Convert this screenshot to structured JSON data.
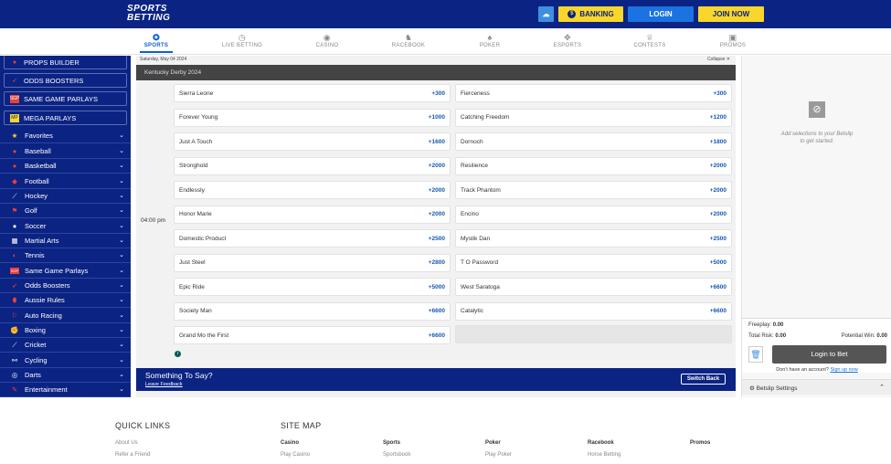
{
  "header": {
    "logo_line1": "SPORTS",
    "logo_line2": "BETTING",
    "banking_label": "BANKING",
    "login_label": "LOGIN",
    "join_label": "JOIN NOW",
    "colors": {
      "header_bg": "#0b2382",
      "yellow": "#f9d62a",
      "blue": "#1a73e0"
    }
  },
  "nav": [
    {
      "label": "SPORTS",
      "icon": "football-icon",
      "active": true
    },
    {
      "label": "LIVE BETTING",
      "icon": "stopwatch-icon"
    },
    {
      "label": "CASINO",
      "icon": "casino-chips-icon"
    },
    {
      "label": "RACEBOOK",
      "icon": "horse-icon"
    },
    {
      "label": "POKER",
      "icon": "cards-icon"
    },
    {
      "label": "ESPORTS",
      "icon": "gamepad-icon"
    },
    {
      "label": "CONTESTS",
      "icon": "trophy-icon"
    },
    {
      "label": "PROMOS",
      "icon": "gift-icon"
    }
  ],
  "sidebar": {
    "promos": [
      {
        "label": "PROPS BUILDER",
        "icon": "props-icon"
      },
      {
        "label": "ODDS BOOSTERS",
        "icon": "rocket-icon"
      },
      {
        "label": "SAME GAME PARLAYS",
        "icon": "sgp-icon"
      },
      {
        "label": "MEGA PARLAYS",
        "icon": "mega-icon"
      }
    ],
    "sports": [
      {
        "label": "Favorites",
        "icon": "star-icon"
      },
      {
        "label": "Baseball",
        "icon": "baseball-icon"
      },
      {
        "label": "Basketball",
        "icon": "basketball-icon"
      },
      {
        "label": "Football",
        "icon": "football-icon"
      },
      {
        "label": "Hockey",
        "icon": "hockey-icon"
      },
      {
        "label": "Golf",
        "icon": "golf-icon"
      },
      {
        "label": "Soccer",
        "icon": "soccer-icon"
      },
      {
        "label": "Martial Arts",
        "icon": "martial-arts-icon"
      },
      {
        "label": "Tennis",
        "icon": "tennis-icon"
      },
      {
        "label": "Same Game Parlays",
        "icon": "sgp-icon"
      },
      {
        "label": "Odds Boosters",
        "icon": "rocket-icon"
      },
      {
        "label": "Aussie Rules",
        "icon": "aussie-rules-icon"
      },
      {
        "label": "Auto Racing",
        "icon": "auto-racing-icon"
      },
      {
        "label": "Boxing",
        "icon": "boxing-icon"
      },
      {
        "label": "Cricket",
        "icon": "cricket-icon"
      },
      {
        "label": "Cycling",
        "icon": "cycling-icon"
      },
      {
        "label": "Darts",
        "icon": "darts-icon"
      },
      {
        "label": "Entertainment",
        "icon": "entertainment-icon"
      }
    ]
  },
  "main": {
    "date": "Saturday, May 04 2024",
    "collapse": "Collapse",
    "race": "Kentucky Derby 2024",
    "time": "04:00 pm",
    "left": [
      {
        "name": "Sierra Leone",
        "odds": "+300"
      },
      {
        "name": "Forever Young",
        "odds": "+1000"
      },
      {
        "name": "Just A Touch",
        "odds": "+1600"
      },
      {
        "name": "Stronghold",
        "odds": "+2000"
      },
      {
        "name": "Endlessly",
        "odds": "+2000"
      },
      {
        "name": "Honor Marie",
        "odds": "+2000"
      },
      {
        "name": "Domestic Product",
        "odds": "+2500"
      },
      {
        "name": "Just Steel",
        "odds": "+2800"
      },
      {
        "name": "Epic Ride",
        "odds": "+5000"
      },
      {
        "name": "Society Man",
        "odds": "+6600"
      },
      {
        "name": "Grand Mo the First",
        "odds": "+6600"
      }
    ],
    "right": [
      {
        "name": "Fierceness",
        "odds": "+300"
      },
      {
        "name": "Catching Freedom",
        "odds": "+1200"
      },
      {
        "name": "Dornoch",
        "odds": "+1800"
      },
      {
        "name": "Resilience",
        "odds": "+2000"
      },
      {
        "name": "Track Phantom",
        "odds": "+2000"
      },
      {
        "name": "Encino",
        "odds": "+2000"
      },
      {
        "name": "Mystik Dan",
        "odds": "+2500"
      },
      {
        "name": "T O Password",
        "odds": "+5000"
      },
      {
        "name": "West Saratoga",
        "odds": "+6600"
      },
      {
        "name": "Catalytic",
        "odds": "+6600"
      }
    ],
    "info_glyph": "i",
    "feedback": {
      "title": "Something To Say?",
      "link": "Leave Feedback",
      "button": "Switch Back"
    }
  },
  "betslip": {
    "empty_line1": "Add selections to your Betslip",
    "empty_line2": "to get started.",
    "freeplay_label": "Freeplay:",
    "freeplay_value": "0.00",
    "risk_label": "Total Risk:",
    "risk_value": "0.00",
    "win_label": "Potential Win:",
    "win_value": "0.00",
    "login_label": "Login to Bet",
    "no_account": "Don't have an account?",
    "signup": "Sign up now",
    "settings": "Betslip Settings"
  },
  "footer": {
    "quick_links": "QUICK LINKS",
    "quick_items": [
      "About Us",
      "Refer a Friend"
    ],
    "site_map": "SITE MAP",
    "columns": [
      {
        "title": "Casino",
        "link": "Play Casino"
      },
      {
        "title": "Sports",
        "link": "Sportsbook"
      },
      {
        "title": "Poker",
        "link": "Play Poker"
      },
      {
        "title": "Racebook",
        "link": "Horse Betting"
      },
      {
        "title": "Promos",
        "link": ""
      }
    ]
  }
}
